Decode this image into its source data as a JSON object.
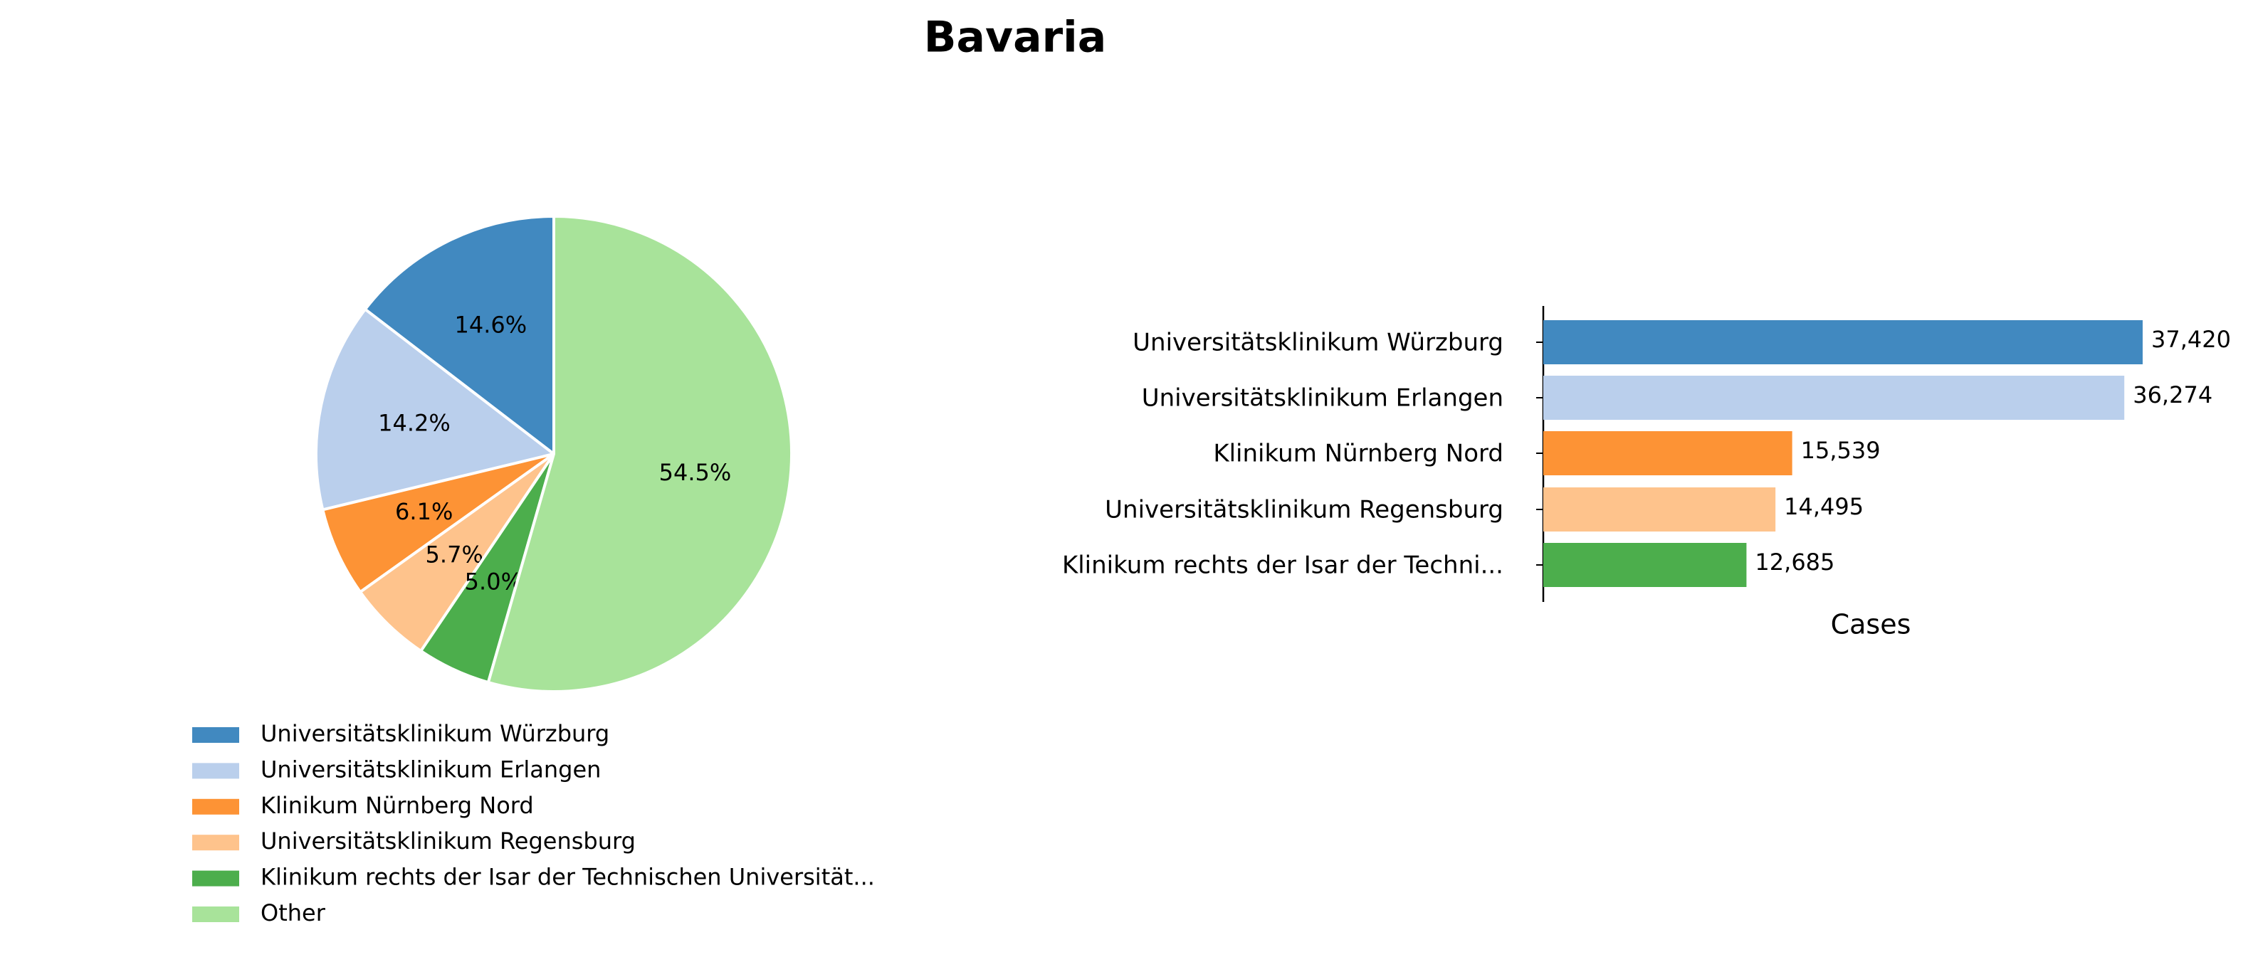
{
  "chart_data": [
    {
      "type": "pie",
      "title": "Bavaria",
      "categories": [
        "Universitätsklinikum Würzburg",
        "Universitätsklinikum Erlangen",
        "Klinikum Nürnberg Nord",
        "Universitätsklinikum Regensburg",
        "Klinikum rechts der Isar der Technischen Universität...",
        "Other"
      ],
      "values": [
        14.6,
        14.2,
        6.1,
        5.7,
        5.0,
        54.5
      ],
      "value_labels": [
        "14.6%",
        "14.2%",
        "6.1%",
        "5.7%",
        "5.0%",
        "54.5%"
      ],
      "colors": [
        "#4189c0",
        "#bacfec",
        "#fd9335",
        "#fec38c",
        "#4cae4c",
        "#a8e39a"
      ],
      "start_angle_deg": 90,
      "direction": "counterclockwise",
      "legend_position": "below"
    },
    {
      "type": "bar",
      "orientation": "horizontal",
      "categories": [
        "Universitätsklinikum Würzburg",
        "Universitätsklinikum Erlangen",
        "Klinikum Nürnberg Nord",
        "Universitätsklinikum Regensburg",
        "Klinikum rechts der Isar der Techni..."
      ],
      "values": [
        37420,
        36274,
        15539,
        14495,
        12685
      ],
      "value_labels": [
        "37,420",
        "36,274",
        "15,539",
        "14,495",
        "12,685"
      ],
      "colors": [
        "#4189c0",
        "#bacfec",
        "#fd9335",
        "#fec38c",
        "#4cae4c"
      ],
      "xlabel": "Cases",
      "xlim": [
        0,
        38000
      ],
      "x_axis_visible": false,
      "grid": false
    }
  ]
}
